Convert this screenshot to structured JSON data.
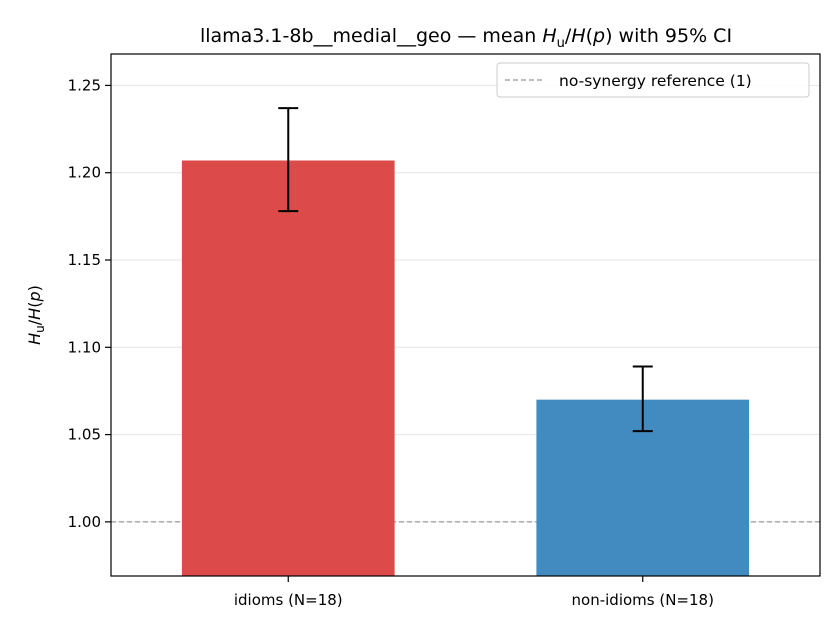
{
  "chart_data": {
    "type": "bar",
    "title_prefix": "llama3.1-8b__medial__geo — mean ",
    "title_suffix": " with 95% CI",
    "ylabel_math": {
      "H": "H",
      "sub": "u",
      "sep": "/",
      "Hp": "H",
      "p": "p"
    },
    "categories": [
      "idioms (N=18)",
      "non-idioms (N=18)"
    ],
    "values": [
      1.207,
      1.07
    ],
    "ci_low": [
      1.178,
      1.052
    ],
    "ci_high": [
      1.237,
      1.089
    ],
    "colors": [
      "#dc4a4a",
      "#428bc0"
    ],
    "ylim": [
      0.969,
      1.268
    ],
    "yticks": [
      1.0,
      1.05,
      1.1,
      1.15,
      1.2,
      1.25
    ],
    "ytick_labels": [
      "1.00",
      "1.05",
      "1.10",
      "1.15",
      "1.20",
      "1.25"
    ],
    "grid": "y",
    "reference_line": {
      "value": 1.0,
      "label": "no-synergy reference (1)",
      "color": "#999999"
    },
    "legend_placement": "top-right"
  }
}
